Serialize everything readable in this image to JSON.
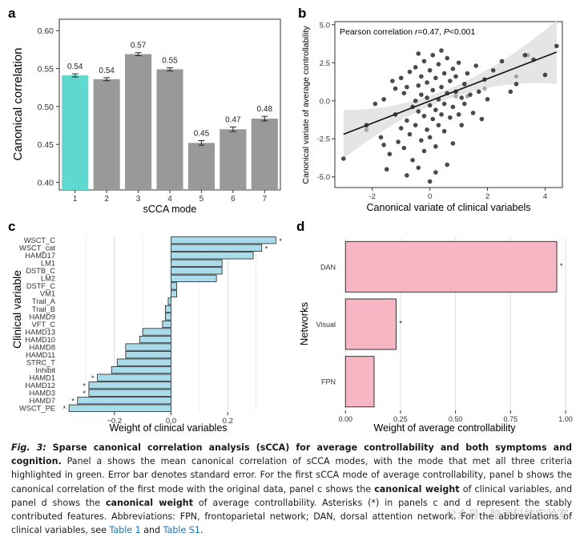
{
  "colors": {
    "bar_gray": "#999999",
    "bar_teal": "#5fd8d0",
    "scatter_dot": "#222222",
    "scatter_light": "#9a9a9a",
    "ci_band": "#e2e2e2",
    "bar_blue": "#a9dbea",
    "bar_pink": "#f7b6c3",
    "axis": "#333333",
    "grid": "#dddddd"
  },
  "panels": {
    "a": "a",
    "b": "b",
    "c": "c",
    "d": "d"
  },
  "chart_data": [
    {
      "panel": "a",
      "type": "bar",
      "title": "",
      "xlabel": "sCCA mode",
      "ylabel": "Canonical correlation",
      "categories": [
        "1",
        "2",
        "3",
        "4",
        "5",
        "6",
        "7"
      ],
      "values": [
        0.541,
        0.536,
        0.569,
        0.549,
        0.452,
        0.47,
        0.484
      ],
      "errors": [
        0.002,
        0.002,
        0.002,
        0.002,
        0.003,
        0.003,
        0.003
      ],
      "data_labels": [
        "0.54",
        "0.54",
        "0.57",
        "0.55",
        "0.45",
        "0.47",
        "0.48"
      ],
      "highlight_index": 0,
      "ylim": [
        0.39,
        0.615
      ],
      "yticks": [
        0.4,
        0.45,
        0.5,
        0.55,
        0.6
      ],
      "ytick_labels": [
        "0.40",
        "0.45",
        "0.50",
        "0.55",
        "0.60"
      ]
    },
    {
      "panel": "b",
      "type": "scatter",
      "xlabel": "Canonical variate of clinical variabels",
      "ylabel": "Canonical variate of average controllability",
      "annotation_prefix": "Pearson correlation  ",
      "annotation_r": "r",
      "annotation_mid": "=0.47, ",
      "annotation_p": "P",
      "annotation_suffix": "<0.001",
      "xlim": [
        -3.3,
        4.6
      ],
      "ylim": [
        -5.7,
        5.2
      ],
      "xticks": [
        -2,
        0,
        2,
        4
      ],
      "xtick_labels": [
        "-2",
        "0",
        "2",
        "4"
      ],
      "yticks": [
        -5,
        -2.5,
        0,
        2.5,
        5
      ],
      "ytick_labels": [
        "-5.0",
        "-2.5",
        "0.0",
        "2.5",
        "5.0"
      ],
      "fit_line": {
        "x": [
          -3.0,
          4.4
        ],
        "y": [
          -2.2,
          3.2
        ]
      },
      "points": [
        [
          -3.0,
          -3.8
        ],
        [
          -2.2,
          -1.6
        ],
        [
          -1.9,
          -0.2
        ],
        [
          -1.7,
          -2.4
        ],
        [
          -1.6,
          0.1
        ],
        [
          -1.6,
          -2.9
        ],
        [
          -1.5,
          -4.5
        ],
        [
          -1.4,
          -3.5
        ],
        [
          -1.3,
          1.3
        ],
        [
          -1.2,
          -0.9
        ],
        [
          -1.2,
          0.8
        ],
        [
          -1.1,
          -2.7
        ],
        [
          -1.0,
          1.5
        ],
        [
          -1.0,
          -1.8
        ],
        [
          -0.9,
          0.5
        ],
        [
          -0.9,
          -3.1
        ],
        [
          -0.8,
          -1.3
        ],
        [
          -0.8,
          0.9
        ],
        [
          -0.7,
          -2.2
        ],
        [
          -0.7,
          1.9
        ],
        [
          -0.6,
          -0.4
        ],
        [
          -0.6,
          -3.9
        ],
        [
          -0.5,
          0.0
        ],
        [
          -0.5,
          -1.6
        ],
        [
          -0.5,
          2.2
        ],
        [
          -0.4,
          -0.7
        ],
        [
          -0.4,
          1.0
        ],
        [
          -0.4,
          -4.4
        ],
        [
          -0.3,
          -2.6
        ],
        [
          -0.3,
          0.4
        ],
        [
          -0.3,
          1.6
        ],
        [
          -0.2,
          -1.0
        ],
        [
          -0.2,
          2.6
        ],
        [
          -0.2,
          -3.3
        ],
        [
          -0.1,
          0.2
        ],
        [
          -0.1,
          -1.9
        ],
        [
          -0.1,
          1.2
        ],
        [
          0.0,
          -0.3
        ],
        [
          0.0,
          2.0
        ],
        [
          0.0,
          -5.3
        ],
        [
          0.0,
          -2.4
        ],
        [
          0.1,
          0.7
        ],
        [
          0.1,
          -1.2
        ],
        [
          0.1,
          3.0
        ],
        [
          0.2,
          -0.6
        ],
        [
          0.2,
          1.5
        ],
        [
          0.2,
          -3.0
        ],
        [
          0.3,
          0.1
        ],
        [
          0.3,
          2.4
        ],
        [
          0.3,
          -1.6
        ],
        [
          0.4,
          0.9
        ],
        [
          0.4,
          -0.9
        ],
        [
          0.4,
          3.3
        ],
        [
          0.5,
          -2.0
        ],
        [
          0.5,
          1.8
        ],
        [
          0.5,
          -0.2
        ],
        [
          0.6,
          0.5
        ],
        [
          0.6,
          -4.2
        ],
        [
          0.6,
          2.8
        ],
        [
          0.7,
          -1.1
        ],
        [
          0.7,
          1.3
        ],
        [
          0.8,
          -0.4
        ],
        [
          0.8,
          2.1
        ],
        [
          0.8,
          -2.8
        ],
        [
          0.9,
          0.6
        ],
        [
          0.9,
          1.6
        ],
        [
          1.0,
          -0.9
        ],
        [
          1.0,
          2.5
        ],
        [
          1.1,
          0.2
        ],
        [
          1.1,
          -1.6
        ],
        [
          1.2,
          1.1
        ],
        [
          1.2,
          -0.2
        ],
        [
          1.3,
          1.8
        ],
        [
          1.4,
          0.4
        ],
        [
          1.5,
          -0.8
        ],
        [
          1.6,
          2.3
        ],
        [
          1.7,
          0.6
        ],
        [
          1.8,
          -1.2
        ],
        [
          1.9,
          1.4
        ],
        [
          2.0,
          0.1
        ],
        [
          2.2,
          2.0
        ],
        [
          2.5,
          2.6
        ],
        [
          2.8,
          0.6
        ],
        [
          3.0,
          1.1
        ],
        [
          3.3,
          3.0
        ],
        [
          3.6,
          2.7
        ],
        [
          4.0,
          1.7
        ],
        [
          4.4,
          3.6
        ],
        [
          -0.4,
          3.1
        ],
        [
          0.2,
          -4.7
        ],
        [
          -0.8,
          -4.9
        ]
      ],
      "light_points": [
        [
          0.9,
          0.3
        ],
        [
          1.3,
          0.3
        ],
        [
          3.0,
          1.6
        ],
        [
          3.4,
          3.0
        ],
        [
          -2.2,
          -1.9
        ],
        [
          1.9,
          0.8
        ]
      ]
    },
    {
      "panel": "c",
      "type": "bar",
      "orientation": "horizontal",
      "xlabel": "Weight of clinical variables",
      "ylabel": "Clinical variable",
      "categories": [
        "WSCT_C",
        "WSCT_cat",
        "HAMD17",
        "LM1",
        "DSTB_C",
        "LM2",
        "DSTF_C",
        "VM1",
        "Trail_A",
        "Trail_B",
        "HAMD9",
        "VFT_C",
        "HAMD13",
        "HAMD10",
        "HAMD8",
        "HAMD11",
        "STRC_T",
        "Inhibit",
        "HAMD1",
        "HAMD12",
        "HAMD3",
        "HAMD7",
        "WSCT_PE"
      ],
      "values": [
        0.37,
        0.32,
        0.29,
        0.18,
        0.18,
        0.16,
        0.02,
        0.02,
        -0.01,
        -0.02,
        -0.02,
        -0.03,
        -0.1,
        -0.11,
        -0.16,
        -0.16,
        -0.19,
        -0.21,
        -0.26,
        -0.29,
        -0.29,
        -0.33,
        -0.36
      ],
      "stable": [
        "*",
        "*",
        "",
        "",
        "",
        "",
        "",
        "",
        "",
        "",
        "",
        "",
        "",
        "",
        "",
        "",
        "",
        "",
        "*",
        "*",
        "*",
        "*",
        "*"
      ],
      "xlim": [
        -0.4,
        0.4
      ],
      "xticks": [
        -0.2,
        0.0,
        0.2
      ],
      "xtick_labels": [
        "−0.2",
        "0.0",
        "0.2"
      ],
      "grid_minor": [
        -0.3,
        -0.1,
        0.1,
        0.3
      ]
    },
    {
      "panel": "d",
      "type": "bar",
      "orientation": "horizontal",
      "xlabel": "Weight of average controllability",
      "ylabel": "Networks",
      "categories": [
        "DAN",
        "Visual",
        "FPN"
      ],
      "values": [
        0.96,
        0.23,
        0.13
      ],
      "stable": [
        "*",
        "*",
        ""
      ],
      "xlim": [
        -0.03,
        1.0
      ],
      "xticks": [
        0.0,
        0.25,
        0.5,
        0.75,
        1.0
      ],
      "xtick_labels": [
        "0.00",
        "0.25",
        "0.50",
        "0.75",
        "1.00"
      ]
    }
  ],
  "caption": {
    "fig_label": "Fig. 3:",
    "title": "Sparse canonical correlation analysis (sCCA) for average controllability and both symptoms and cognition.",
    "text_1": "Panel a shows the mean canonical correlation of sCCA modes, with the mode that met all three criteria highlighted in green. Error bar denotes standard error. For the first sCCA mode of average controllability, panel b shows the canonical correlation of the first mode with the original data, panel c shows the",
    "bold_1": "canonical weight",
    "text_2": "of clinical variables, and panel d shows the",
    "bold_2": "canonical weight",
    "text_3": "of average controllability. Asterisks (*) in panels c and d represent the stably contributed features. Abbreviations: FPN, frontoparietal network; DAN, dorsal attention network. For the abbreviations of clinical variables, see",
    "link_1": "Table 1",
    "and": "and",
    "link_2": "Table S1",
    "end": "."
  },
  "watermark": "公众号 · 脑消科技实验室"
}
